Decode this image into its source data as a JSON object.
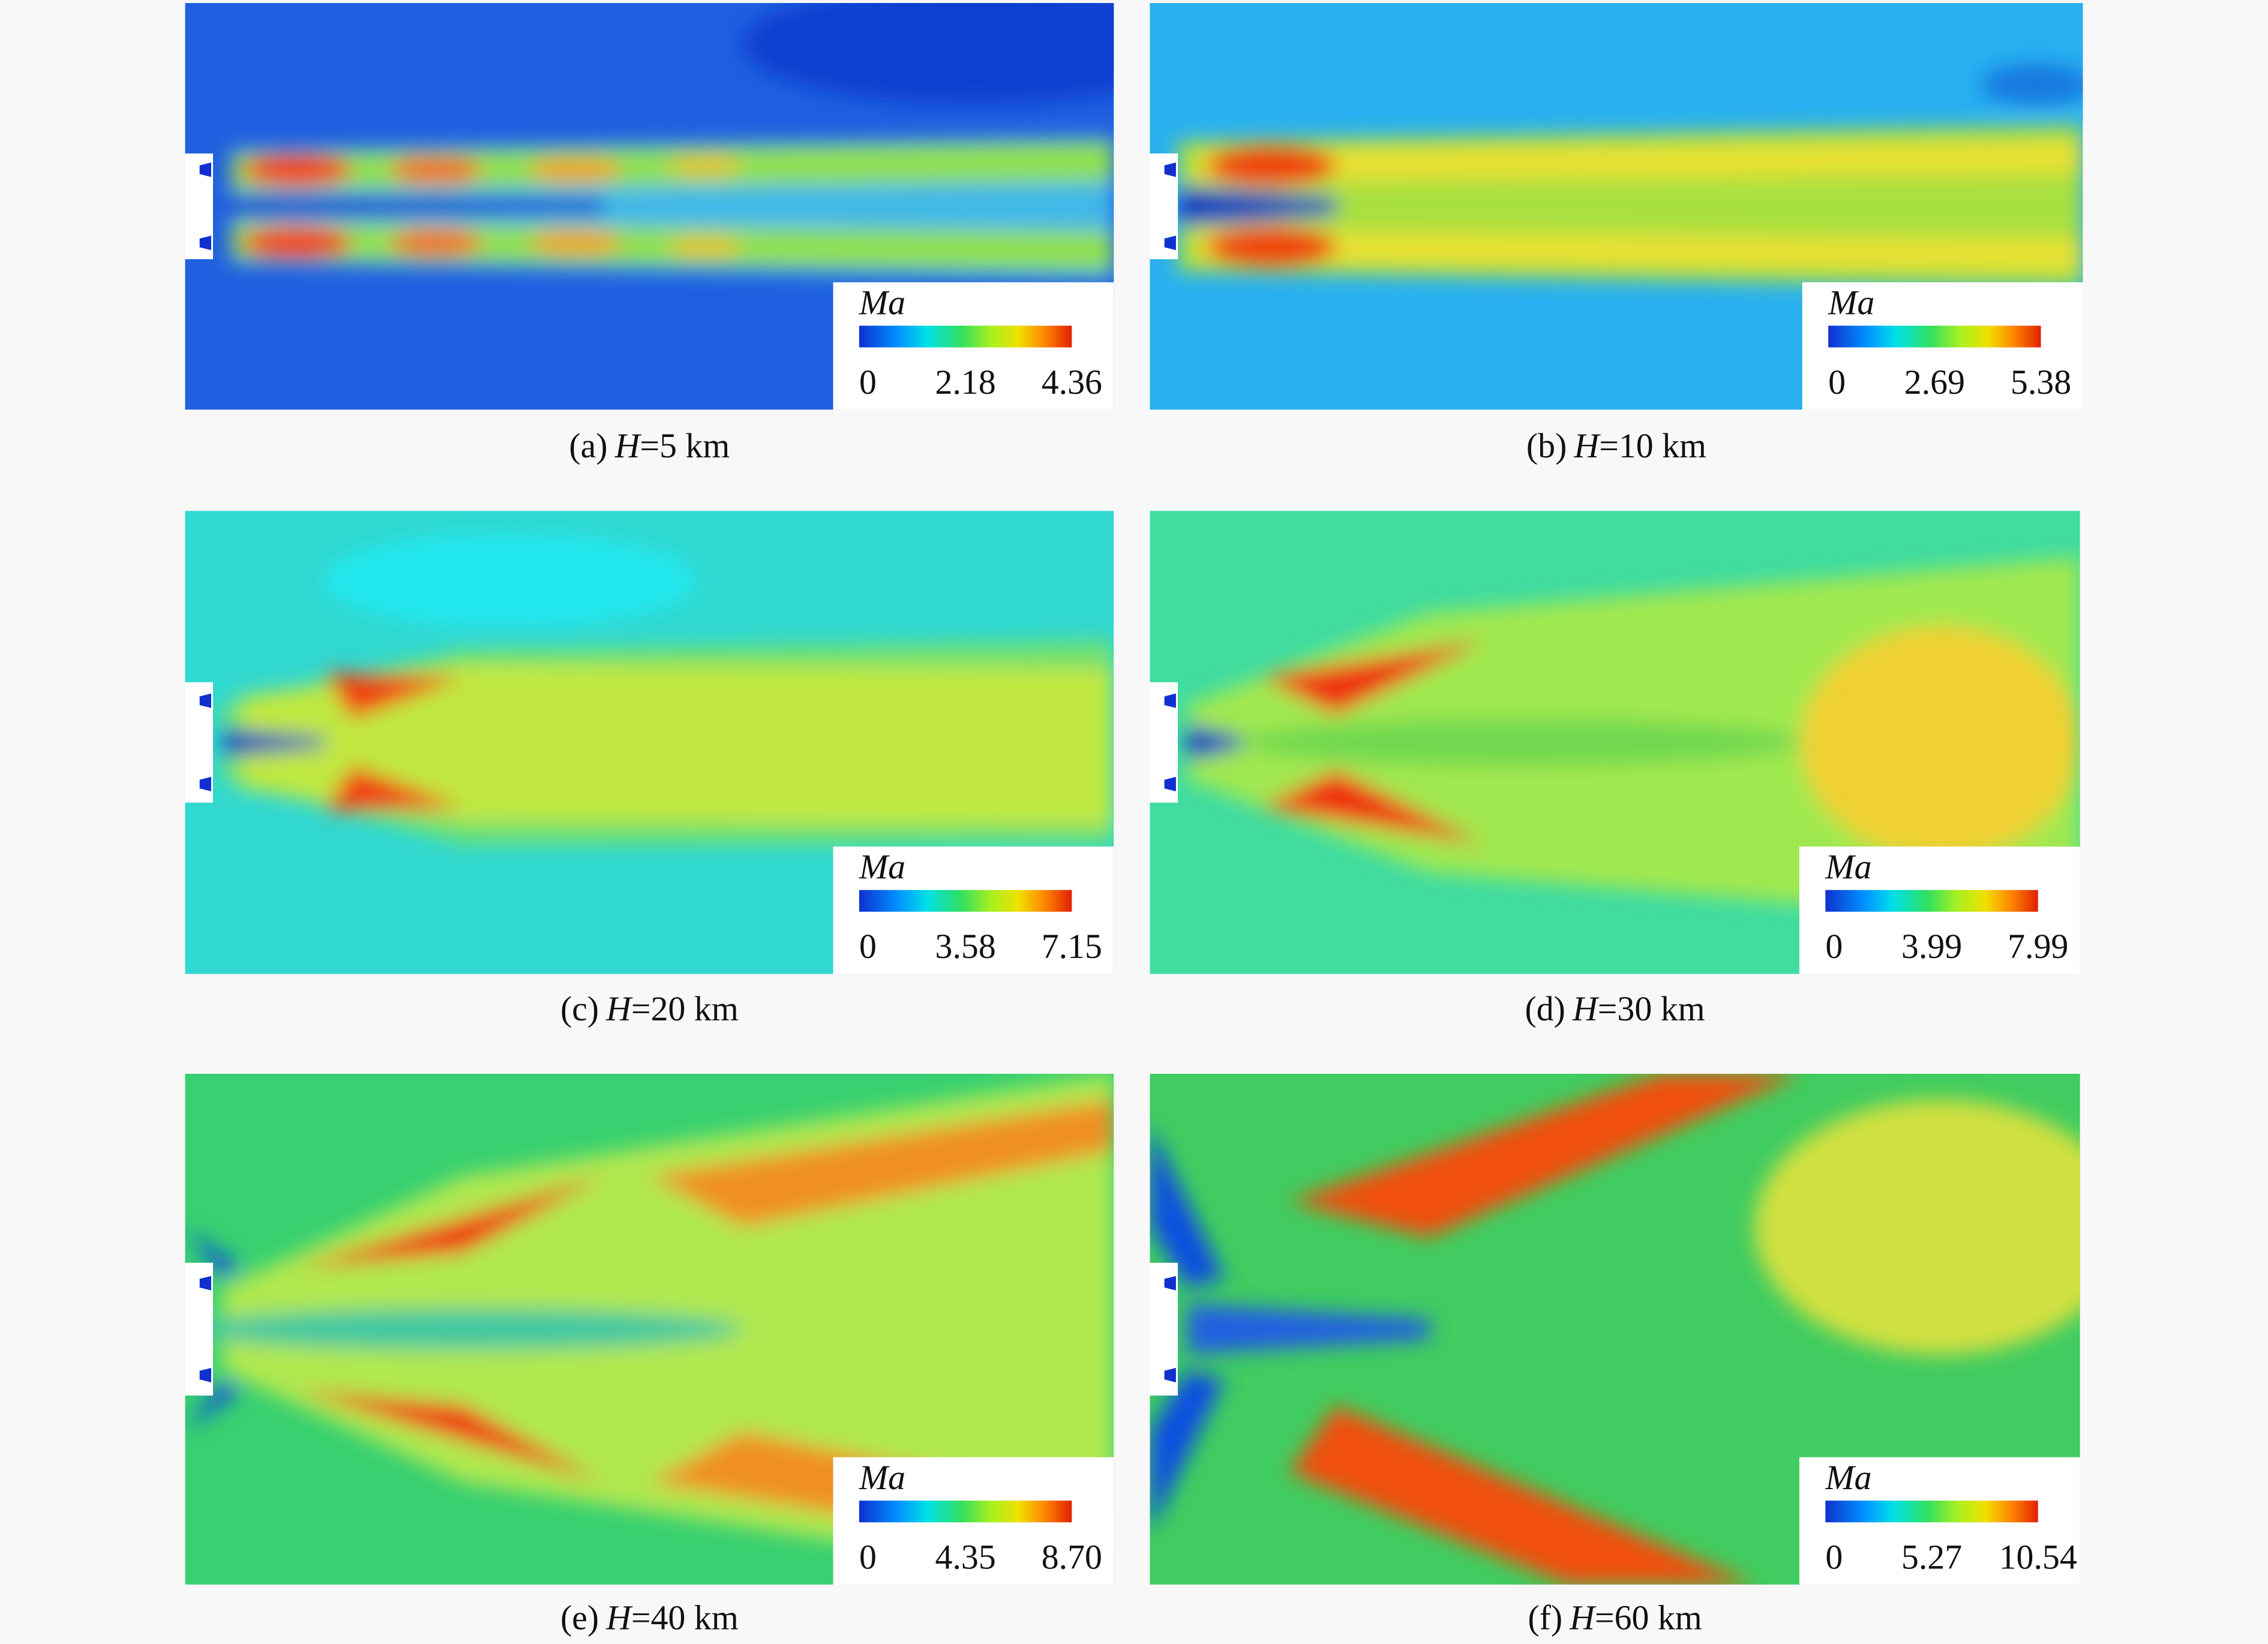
{
  "panels": [
    {
      "caption": {
        "label": "(a)",
        "variable": "H",
        "value": "=5 km"
      },
      "colorbar": {
        "label": "Ma",
        "ticks": [
          "0",
          "2.18",
          "4.36"
        ]
      }
    },
    {
      "caption": {
        "label": "(b)",
        "variable": "H",
        "value": "=10 km"
      },
      "colorbar": {
        "label": "Ma",
        "ticks": [
          "0",
          "2.69",
          "5.38"
        ]
      }
    },
    {
      "caption": {
        "label": "(c)",
        "variable": "H",
        "value": "=20 km"
      },
      "colorbar": {
        "label": "Ma",
        "ticks": [
          "0",
          "3.58",
          "7.15"
        ]
      }
    },
    {
      "caption": {
        "label": "(d)",
        "variable": "H",
        "value": "=30 km"
      },
      "colorbar": {
        "label": "Ma",
        "ticks": [
          "0",
          "3.99",
          "7.99"
        ]
      }
    },
    {
      "caption": {
        "label": "(e)",
        "variable": "H",
        "value": "=40 km"
      },
      "colorbar": {
        "label": "Ma",
        "ticks": [
          "0",
          "4.35",
          "8.70"
        ]
      }
    },
    {
      "caption": {
        "label": "(f)",
        "variable": "H",
        "value": "=60 km"
      },
      "colorbar": {
        "label": "Ma",
        "ticks": [
          "0",
          "5.27",
          "10.54"
        ]
      }
    }
  ]
}
